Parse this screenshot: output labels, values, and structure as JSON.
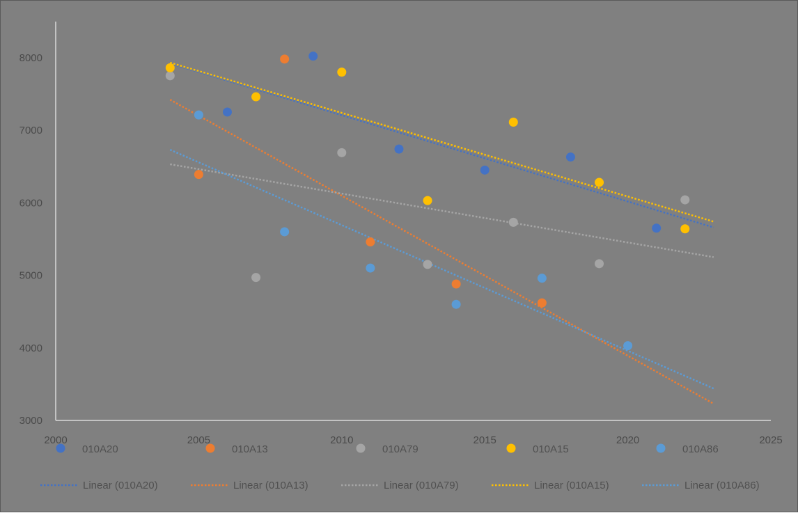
{
  "chart_data": {
    "type": "scatter",
    "title": "",
    "xlabel": "",
    "ylabel": "",
    "xlim": [
      2000,
      2025
    ],
    "ylim": [
      3000,
      8500
    ],
    "x_ticks": [
      2000,
      2005,
      2010,
      2015,
      2020,
      2025
    ],
    "y_ticks": [
      3000,
      4000,
      5000,
      6000,
      7000,
      8000
    ],
    "grid": false,
    "legend_position": "bottom",
    "series": [
      {
        "name": "010A20",
        "color": "#4472c4",
        "points": [
          {
            "x": 2006,
            "y": 7250
          },
          {
            "x": 2009,
            "y": 8020
          },
          {
            "x": 2012,
            "y": 6740
          },
          {
            "x": 2015,
            "y": 6450
          },
          {
            "x": 2018,
            "y": 6630
          },
          {
            "x": 2021,
            "y": 5650
          }
        ],
        "trendline": {
          "name": "Linear (010A20)",
          "from": [
            2004,
            7920
          ],
          "to": [
            2023,
            5660
          ]
        }
      },
      {
        "name": "010A13",
        "color": "#ed7d31",
        "points": [
          {
            "x": 2005,
            "y": 6390
          },
          {
            "x": 2008,
            "y": 7980
          },
          {
            "x": 2011,
            "y": 5460
          },
          {
            "x": 2014,
            "y": 4880
          },
          {
            "x": 2017,
            "y": 4620
          }
        ],
        "trendline": {
          "name": "Linear (010A13)",
          "from": [
            2004,
            7420
          ],
          "to": [
            2023,
            3230
          ]
        }
      },
      {
        "name": "010A79",
        "color": "#a5a5a5",
        "points": [
          {
            "x": 2004,
            "y": 7750
          },
          {
            "x": 2007,
            "y": 4970
          },
          {
            "x": 2010,
            "y": 6690
          },
          {
            "x": 2013,
            "y": 5150
          },
          {
            "x": 2016,
            "y": 5730
          },
          {
            "x": 2019,
            "y": 5160
          },
          {
            "x": 2022,
            "y": 6040
          }
        ],
        "trendline": {
          "name": "Linear (010A79)",
          "from": [
            2004,
            6530
          ],
          "to": [
            2023,
            5250
          ]
        }
      },
      {
        "name": "010A15",
        "color": "#ffc000",
        "points": [
          {
            "x": 2004,
            "y": 7860
          },
          {
            "x": 2007,
            "y": 7460
          },
          {
            "x": 2010,
            "y": 7800
          },
          {
            "x": 2013,
            "y": 6030
          },
          {
            "x": 2016,
            "y": 7110
          },
          {
            "x": 2019,
            "y": 6280
          },
          {
            "x": 2022,
            "y": 5640
          }
        ],
        "trendline": {
          "name": "Linear (010A15)",
          "from": [
            2004,
            7930
          ],
          "to": [
            2023,
            5740
          ]
        }
      },
      {
        "name": "010A86",
        "color": "#5b9bd5",
        "points": [
          {
            "x": 2005,
            "y": 7210
          },
          {
            "x": 2008,
            "y": 5600
          },
          {
            "x": 2011,
            "y": 5100
          },
          {
            "x": 2014,
            "y": 4600
          },
          {
            "x": 2017,
            "y": 4960
          },
          {
            "x": 2020,
            "y": 4030
          }
        ],
        "trendline": {
          "name": "Linear (010A86)",
          "from": [
            2004,
            6730
          ],
          "to": [
            2023,
            3440
          ]
        }
      }
    ]
  }
}
